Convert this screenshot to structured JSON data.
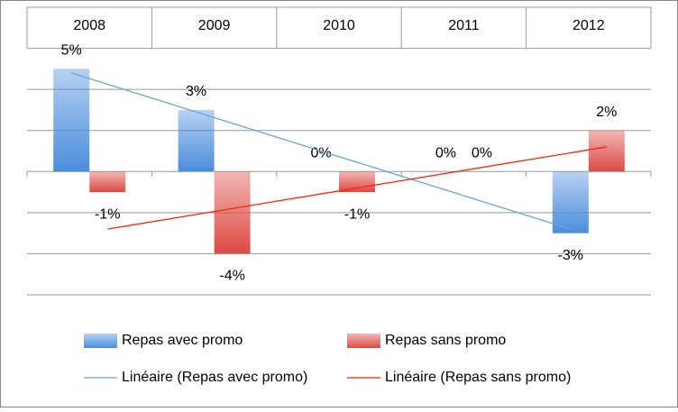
{
  "chart_data": {
    "type": "bar",
    "categories": [
      "2008",
      "2009",
      "2010",
      "2011",
      "2012"
    ],
    "series": [
      {
        "name": "Repas avec promo",
        "color": "#4a8ddc",
        "values": [
          5,
          3,
          0,
          0,
          -3
        ],
        "value_labels": [
          "5%",
          "3%",
          "0%",
          "0%",
          "-3%"
        ]
      },
      {
        "name": "Repas sans promo",
        "color": "#dc4a44",
        "values": [
          -1,
          -4,
          -1,
          0,
          2
        ],
        "value_labels": [
          "-1%",
          "-4%",
          "-1%",
          "0%",
          "2%"
        ]
      }
    ],
    "trendlines": [
      {
        "name": "Linéaire (Repas avec promo)",
        "color": "#6aa6da",
        "series": 0
      },
      {
        "name": "Linéaire (Repas sans promo)",
        "color": "#ff2200",
        "series": 1
      }
    ],
    "ylim": [
      -6,
      8
    ],
    "yticks": [
      -6,
      -4,
      -2,
      0,
      2,
      4,
      6,
      8
    ],
    "grid": true
  }
}
